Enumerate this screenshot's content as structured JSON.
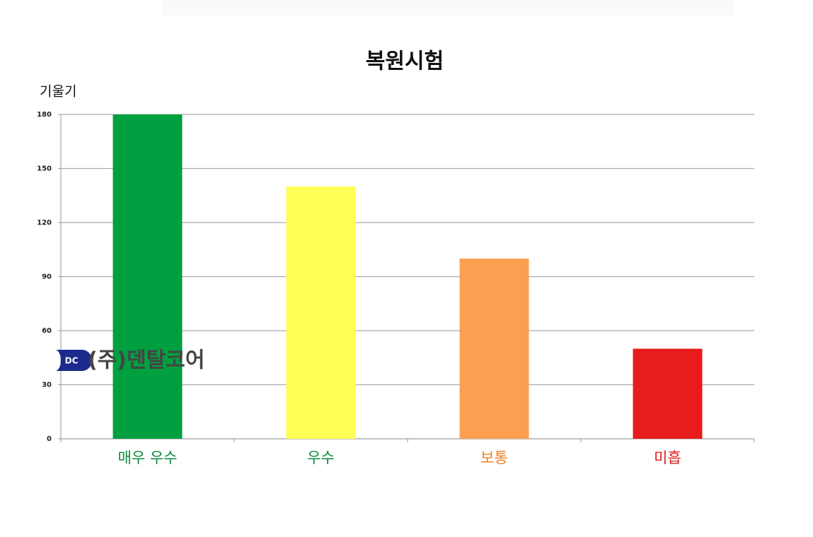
{
  "chart_data": {
    "type": "bar",
    "title": "복원시험",
    "y_label": "기울기",
    "categories": [
      "매우 우수",
      "우수",
      "보통",
      "미흡"
    ],
    "values": [
      180,
      140,
      100,
      50
    ],
    "colors": [
      "#00a040",
      "#ffff55",
      "#fba050",
      "#e81c1c"
    ],
    "category_colors": [
      "#0b8a3a",
      "#0b8a3a",
      "#f08020",
      "#e02020"
    ],
    "ylim": [
      0,
      180
    ],
    "yticks": [
      0,
      30,
      60,
      90,
      120,
      150,
      180
    ],
    "grid": true
  },
  "watermark": {
    "logo": "DC",
    "text": "(주)덴탈코어"
  }
}
